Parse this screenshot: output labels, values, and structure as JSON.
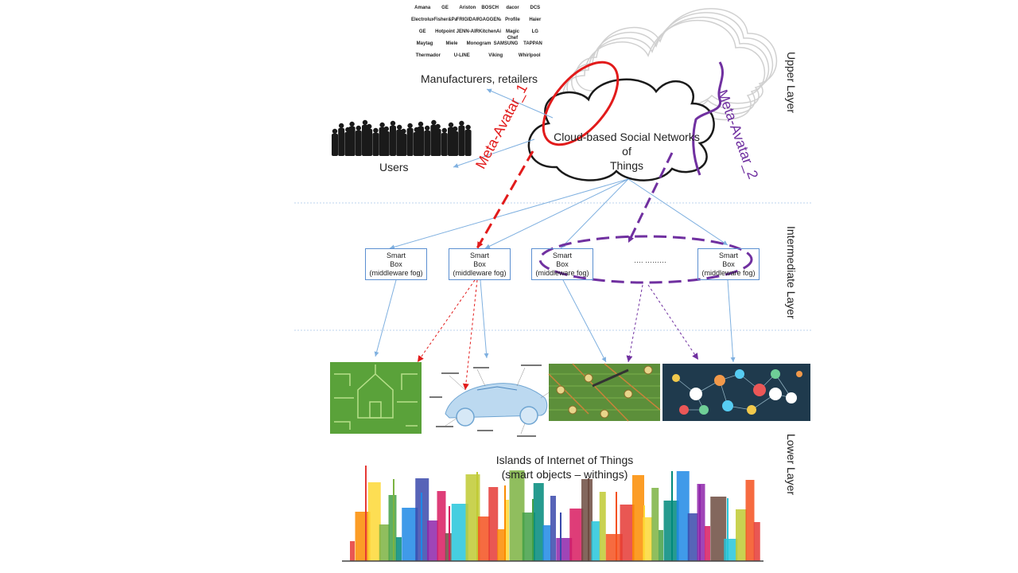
{
  "layers": {
    "upper": "Upper Layer",
    "intermediate": "Intermediate Layer",
    "lower": "Lower Layer"
  },
  "upper": {
    "manufacturers_label": "Manufacturers, retailers",
    "users_label": "Users",
    "cloud_label_line1": "Cloud-based Social Networks of",
    "cloud_label_line2": "Things",
    "meta_avatar_1": "Meta-Avatar_1",
    "meta_avatar_2": "Meta-Avatar_2",
    "brands": [
      "Amana",
      "GE",
      "Ariston",
      "BOSCH",
      "dacor",
      "DCS",
      "Electrolux",
      "Fisher&Paykel",
      "FRIGIDAIRE",
      "GAGGENAU",
      "Profile",
      "Haier",
      "GE",
      "Hotpoint",
      "JENN-AIR",
      "KitchenAid",
      "Magic Chef",
      "LG",
      "Maytag",
      "Miele",
      "Monogram",
      "SAMSUNG",
      "TAPPAN",
      "Thermador",
      "U-LINE",
      "Viking",
      "Whirlpool"
    ]
  },
  "intermediate": {
    "smart_boxes": [
      {
        "line1": "Smart",
        "line2": "Box",
        "line3": "(middleware fog)"
      },
      {
        "line1": "Smart",
        "line2": "Box",
        "line3": "(middleware fog)"
      },
      {
        "line1": "Smart",
        "line2": "Box",
        "line3": "(middleware fog)"
      },
      {
        "line1": "Smart",
        "line2": "Box",
        "line3": "(middleware fog)"
      }
    ],
    "ellipsis": "…. ………"
  },
  "lower": {
    "title_line1": "Islands of Internet of Things",
    "title_line2": "(smart objects – withings)"
  },
  "colors": {
    "red": "#e21b1b",
    "purple": "#7030a0",
    "blue_line": "#7fb0e0",
    "box_border": "#5b8fd1",
    "circuit_green": "#5aa23a",
    "farm_green": "#5c8f3a",
    "iot_navy": "#1f3a4d"
  }
}
